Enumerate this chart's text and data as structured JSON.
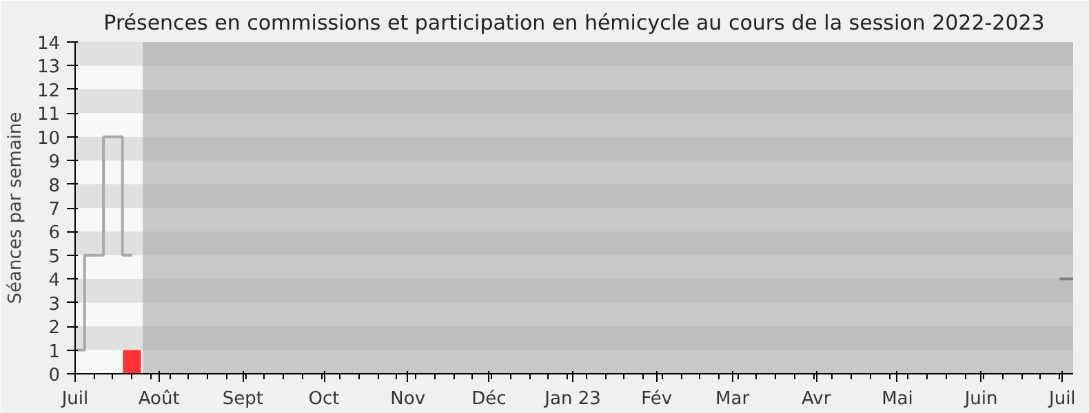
{
  "chart_data": {
    "type": "bar",
    "title": "Présences en commissions et participation en hémicycle au cours de la session 2022-2023",
    "ylabel": "Séances par semaine",
    "xlim": [
      "2022-07-01",
      "2023-07-05"
    ],
    "xticks": [
      {
        "value": "2022-07-01",
        "label": "Juil"
      },
      {
        "value": "2022-08-01",
        "label": "Août"
      },
      {
        "value": "2022-09-01",
        "label": "Sept"
      },
      {
        "value": "2022-10-01",
        "label": "Oct"
      },
      {
        "value": "2022-11-01",
        "label": "Nov"
      },
      {
        "value": "2022-12-01",
        "label": "Déc"
      },
      {
        "value": "2023-01-01",
        "label": "Jan 23"
      },
      {
        "value": "2023-02-01",
        "label": "Fév"
      },
      {
        "value": "2023-03-01",
        "label": "Mar"
      },
      {
        "value": "2023-04-01",
        "label": "Avr"
      },
      {
        "value": "2023-05-01",
        "label": "Mai"
      },
      {
        "value": "2023-06-01",
        "label": "Juin"
      },
      {
        "value": "2023-07-01",
        "label": "Juil"
      }
    ],
    "ylim": [
      0,
      14
    ],
    "yticks": [
      0,
      1,
      2,
      3,
      4,
      5,
      6,
      7,
      8,
      9,
      10,
      11,
      12,
      13,
      14
    ],
    "series": [
      {
        "color": "#ff3333",
        "x": [
          "2022-07-22"
        ],
        "values": [
          1
        ]
      },
      {
        "type": "step",
        "color": "#a8a8a8",
        "x": [
          "2022-07-01",
          "2022-07-08",
          "2022-07-15",
          "2022-07-22"
        ],
        "values": [
          1,
          5,
          10,
          5
        ]
      },
      {
        "type": "step",
        "color": "#808080",
        "x": [
          "2023-06-30",
          "2023-07-05"
        ],
        "values": [
          4,
          4
        ]
      }
    ],
    "bands": [
      {
        "axis": "x",
        "from": "2022-07-26",
        "to": "2023-07-05",
        "color": "#a0a0a0"
      }
    ]
  }
}
